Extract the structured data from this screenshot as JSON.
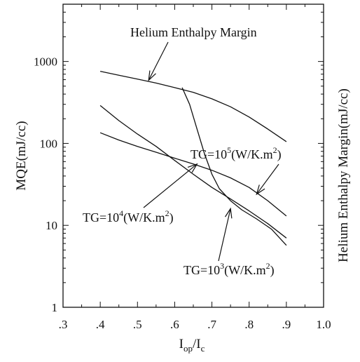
{
  "chart_data": {
    "type": "line",
    "title": "",
    "xlabel": {
      "main": "I",
      "sub1": "op",
      "slash": "/I",
      "sub2": "c"
    },
    "ylabel": "MQE(mJ/cc)",
    "ylabel_right": "Helium Enthalpy Margin(mJ/cc)",
    "xlim": [
      0.3,
      1.0
    ],
    "ylim": [
      1,
      5000
    ],
    "y_scale": "log",
    "grid": false,
    "x_ticks": [
      {
        "value": 0.3,
        "label": ".3"
      },
      {
        "value": 0.4,
        "label": ".4"
      },
      {
        "value": 0.5,
        "label": ".5"
      },
      {
        "value": 0.6,
        "label": ".6"
      },
      {
        "value": 0.7,
        "label": ".7"
      },
      {
        "value": 0.8,
        "label": ".8"
      },
      {
        "value": 0.9,
        "label": ".9"
      },
      {
        "value": 1.0,
        "label": "1.0"
      }
    ],
    "y_ticks": [
      {
        "value": 1,
        "label": "1"
      },
      {
        "value": 10,
        "label": "10"
      },
      {
        "value": 100,
        "label": "100"
      },
      {
        "value": 1000,
        "label": "1000"
      }
    ],
    "series": [
      {
        "name": "Helium Enthalpy Margin",
        "x": [
          0.4,
          0.45,
          0.5,
          0.55,
          0.6,
          0.65,
          0.7,
          0.75,
          0.8,
          0.85,
          0.9
        ],
        "y": [
          760,
          680,
          610,
          545,
          480,
          420,
          350,
          280,
          210,
          150,
          105
        ]
      },
      {
        "name": "TG=10^5(W/K.m^2)",
        "x": [
          0.4,
          0.45,
          0.5,
          0.55,
          0.6,
          0.65,
          0.7,
          0.75,
          0.8,
          0.85,
          0.9
        ],
        "y": [
          135,
          110,
          92,
          78,
          66,
          56,
          47,
          38,
          29,
          20,
          13
        ]
      },
      {
        "name": "TG=10^4(W/K.m^2)",
        "x": [
          0.4,
          0.45,
          0.5,
          0.55,
          0.6,
          0.65,
          0.7,
          0.75,
          0.8,
          0.85,
          0.9
        ],
        "y": [
          290,
          190,
          130,
          92,
          62,
          42,
          29,
          21,
          15,
          10.5,
          7
        ]
      },
      {
        "name": "TG=10^3(W/K.m^2)",
        "x": [
          0.62,
          0.64,
          0.66,
          0.68,
          0.7,
          0.72,
          0.75,
          0.78,
          0.82,
          0.86,
          0.9
        ],
        "y": [
          480,
          300,
          150,
          75,
          42,
          28,
          20,
          15.5,
          12,
          9,
          5.7
        ]
      }
    ],
    "annotations": [
      {
        "id": "annot-hem",
        "text": "Helium Enthalpy Margin",
        "arrow_to": {
          "x": 0.53,
          "y": 590
        }
      },
      {
        "id": "annot-tg5",
        "base": "TG=10",
        "exp": "5",
        "tail": "(W/K.m",
        "exp2": "2",
        "end": ")",
        "arrow_to": {
          "x": 0.82,
          "y": 24
        }
      },
      {
        "id": "annot-tg4",
        "base": "TG=10",
        "exp": "4",
        "tail": "(W/K.m",
        "exp2": "2",
        "end": ")",
        "arrow_to": {
          "x": 0.66,
          "y": 56
        }
      },
      {
        "id": "annot-tg3",
        "base": "TG=10",
        "exp": "3",
        "tail": "(W/K.m",
        "exp2": "2",
        "end": ")",
        "arrow_to": {
          "x": 0.75,
          "y": 16
        }
      }
    ]
  }
}
